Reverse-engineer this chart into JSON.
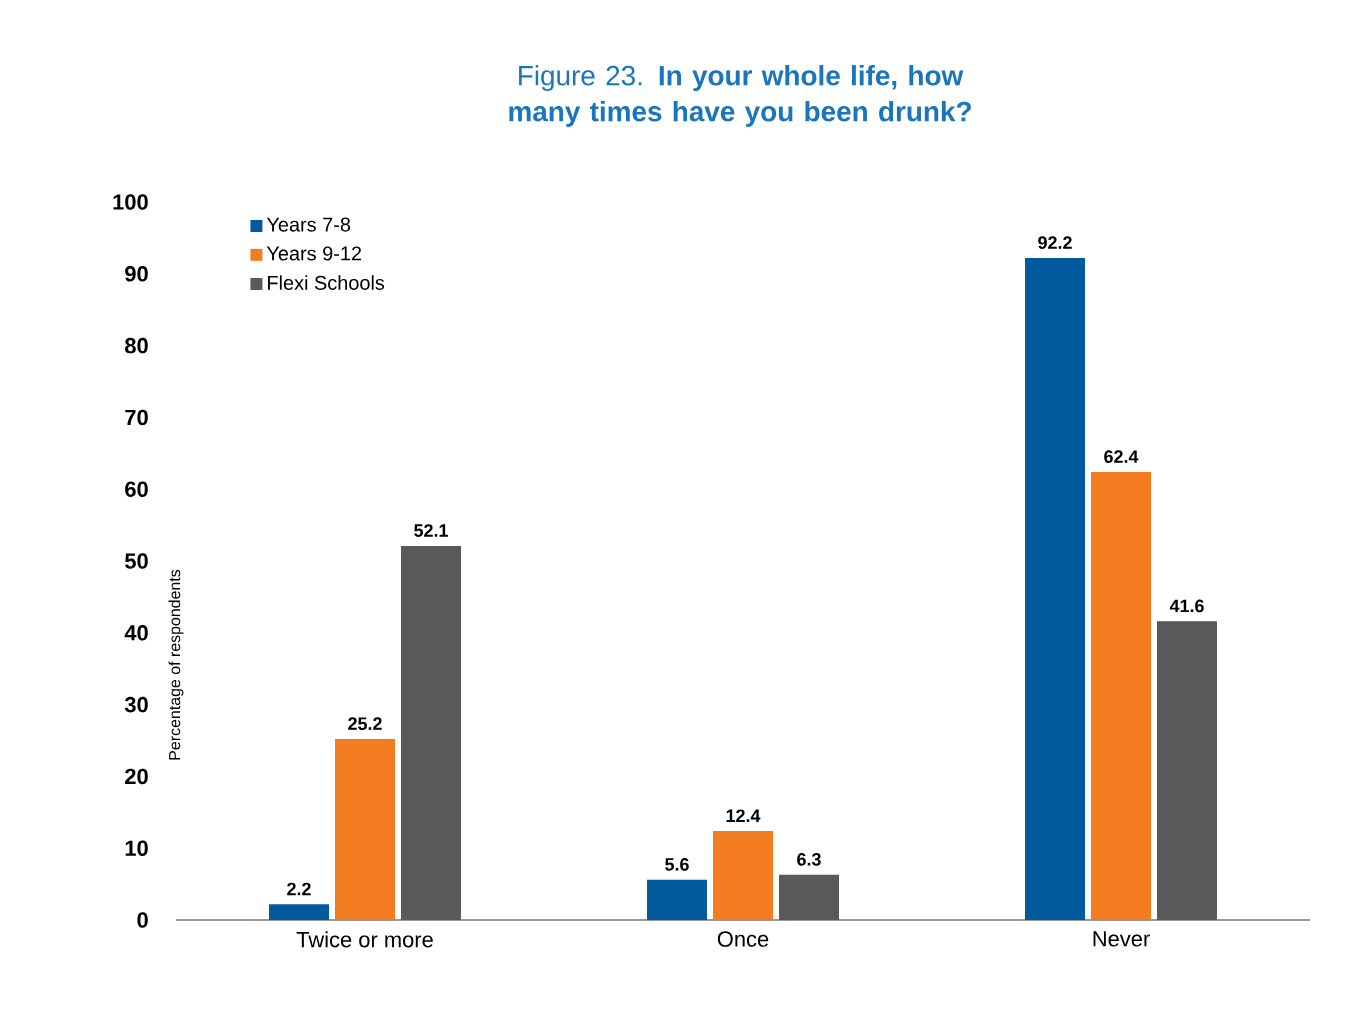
{
  "chart_data": {
    "type": "bar",
    "title": "Figure 23. **In your whole life, how many times have you been drunk?**",
    "ylabel": "Percentage of respondents",
    "categories": [
      "Twice or more",
      "Once",
      "Never"
    ],
    "series": [
      {
        "name": "Years 7-8",
        "color": "#005a9c",
        "values": [
          2.2,
          5.6,
          92.2
        ]
      },
      {
        "name": "Years 9-12",
        "color": "#f47c20",
        "values": [
          25.2,
          12.4,
          62.4
        ]
      },
      {
        "name": "Flexi Schools",
        "color": "#58595b",
        "values": [
          52.1,
          6.3,
          41.6
        ]
      }
    ],
    "ylim": [
      0,
      100
    ],
    "yticks": [
      0,
      10,
      20,
      30,
      40,
      50,
      60,
      70,
      80,
      90,
      100
    ],
    "data_labels": true,
    "legend": "top left"
  }
}
